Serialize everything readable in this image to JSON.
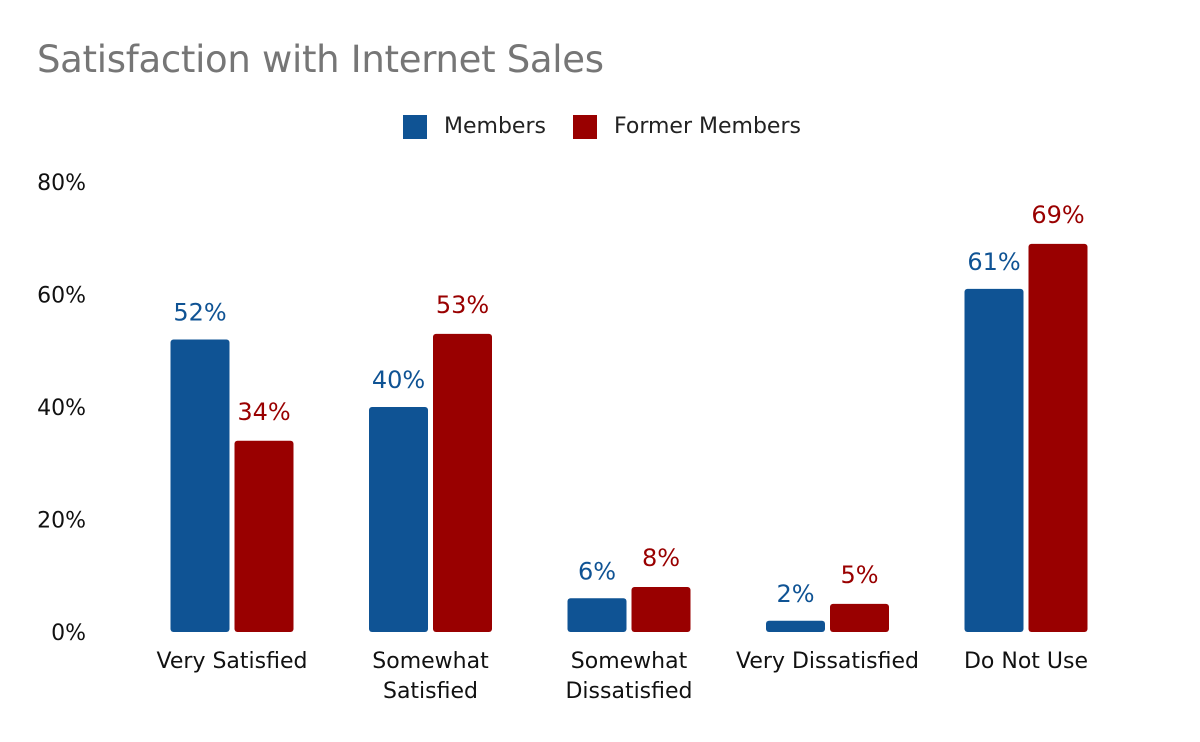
{
  "colors": {
    "members": "#0F5394",
    "former_members": "#990000",
    "title": "#767676"
  },
  "chart_data": {
    "type": "bar",
    "title": "Satisfaction with Internet Sales",
    "xlabel": "",
    "ylabel": "",
    "ylim": [
      0,
      80
    ],
    "yticks": [
      "0%",
      "20%",
      "40%",
      "60%",
      "80%"
    ],
    "ytick_values": [
      0,
      20,
      40,
      60,
      80
    ],
    "grid": false,
    "legend_position": "top-center",
    "categories": [
      [
        "Very Satisfied"
      ],
      [
        "Somewhat",
        "Satisfied"
      ],
      [
        "Somewhat",
        "Dissatisfied"
      ],
      [
        "Very Dissatisfied"
      ],
      [
        "Do Not Use"
      ]
    ],
    "series": [
      {
        "name": "Members",
        "values": [
          52,
          40,
          6,
          2,
          61
        ],
        "labels": [
          "52%",
          "40%",
          "6%",
          "2%",
          "61%"
        ]
      },
      {
        "name": "Former Members",
        "values": [
          34,
          53,
          8,
          5,
          69
        ],
        "labels": [
          "34%",
          "53%",
          "8%",
          "5%",
          "69%"
        ]
      }
    ]
  }
}
